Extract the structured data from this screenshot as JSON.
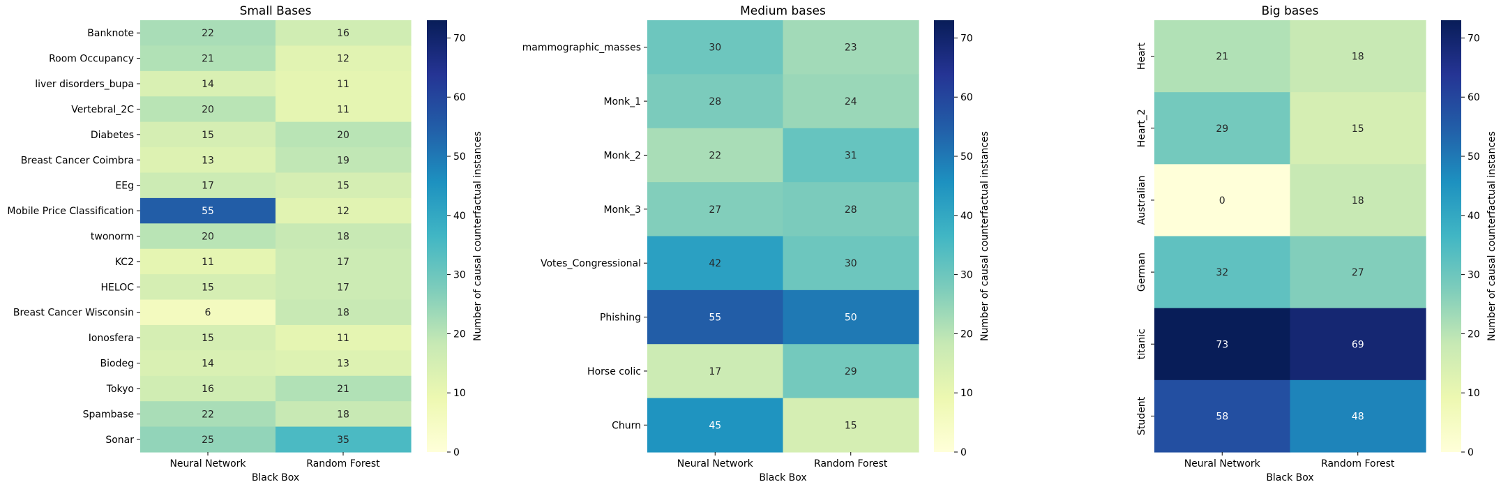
{
  "chart_data": [
    {
      "type": "heatmap",
      "title": "Small Bases",
      "xlabel": "Black Box",
      "ylabel": "",
      "x_categories": [
        "Neural Network",
        "Random Forest"
      ],
      "y_categories": [
        "Banknote",
        "Room Occupancy",
        "liver disorders_bupa",
        "Vertebral_2C",
        "Diabetes",
        "Breast Cancer Coimbra",
        "EEg",
        "Mobile Price Classification",
        "twonorm",
        "KC2",
        "HELOC",
        "Breast Cancer Wisconsin",
        "Ionosfera",
        "Biodeg",
        "Tokyo",
        "Spambase",
        "Sonar"
      ],
      "values": [
        [
          22,
          16
        ],
        [
          21,
          12
        ],
        [
          14,
          11
        ],
        [
          20,
          11
        ],
        [
          15,
          20
        ],
        [
          13,
          19
        ],
        [
          17,
          15
        ],
        [
          55,
          12
        ],
        [
          20,
          18
        ],
        [
          11,
          17
        ],
        [
          15,
          17
        ],
        [
          6,
          18
        ],
        [
          15,
          11
        ],
        [
          14,
          13
        ],
        [
          16,
          21
        ],
        [
          22,
          18
        ],
        [
          25,
          35
        ]
      ],
      "ytick_rotation": "horizontal",
      "colorbar": {
        "label": "Number of causal counterfactual instances",
        "range": [
          0,
          73
        ],
        "ticks": [
          "0",
          "10",
          "20",
          "30",
          "40",
          "50",
          "60",
          "70"
        ],
        "colormap": "YlGnBu"
      }
    },
    {
      "type": "heatmap",
      "title": "Medium bases",
      "xlabel": "Black Box",
      "ylabel": "",
      "x_categories": [
        "Neural Network",
        "Random Forest"
      ],
      "y_categories": [
        "mammographic_masses",
        "Monk_1",
        "Monk_2",
        "Monk_3",
        "Votes_Congressional",
        "Phishing",
        "Horse colic",
        "Churn"
      ],
      "values": [
        [
          30,
          23
        ],
        [
          28,
          24
        ],
        [
          22,
          31
        ],
        [
          27,
          28
        ],
        [
          42,
          30
        ],
        [
          55,
          50
        ],
        [
          17,
          29
        ],
        [
          45,
          15
        ]
      ],
      "ytick_rotation": "horizontal",
      "colorbar": {
        "label": "Number of causal counterfactual instances",
        "range": [
          0,
          73
        ],
        "ticks": [
          "0",
          "10",
          "20",
          "30",
          "40",
          "50",
          "60",
          "70"
        ],
        "colormap": "YlGnBu"
      }
    },
    {
      "type": "heatmap",
      "title": "Big bases",
      "xlabel": "Black Box",
      "ylabel": "",
      "x_categories": [
        "Neural Network",
        "Random Forest"
      ],
      "y_categories": [
        "Heart",
        "Heart_2",
        "Australian",
        "German",
        "titanic",
        "Student"
      ],
      "values": [
        [
          21,
          18
        ],
        [
          29,
          15
        ],
        [
          0,
          18
        ],
        [
          32,
          27
        ],
        [
          73,
          69
        ],
        [
          58,
          48
        ]
      ],
      "ytick_rotation": "vertical",
      "colorbar": {
        "label": "Number of causal counterfactual instances",
        "range": [
          0,
          73
        ],
        "ticks": [
          "0",
          "10",
          "20",
          "30",
          "40",
          "50",
          "60",
          "70"
        ],
        "colormap": "YlGnBu"
      }
    }
  ]
}
